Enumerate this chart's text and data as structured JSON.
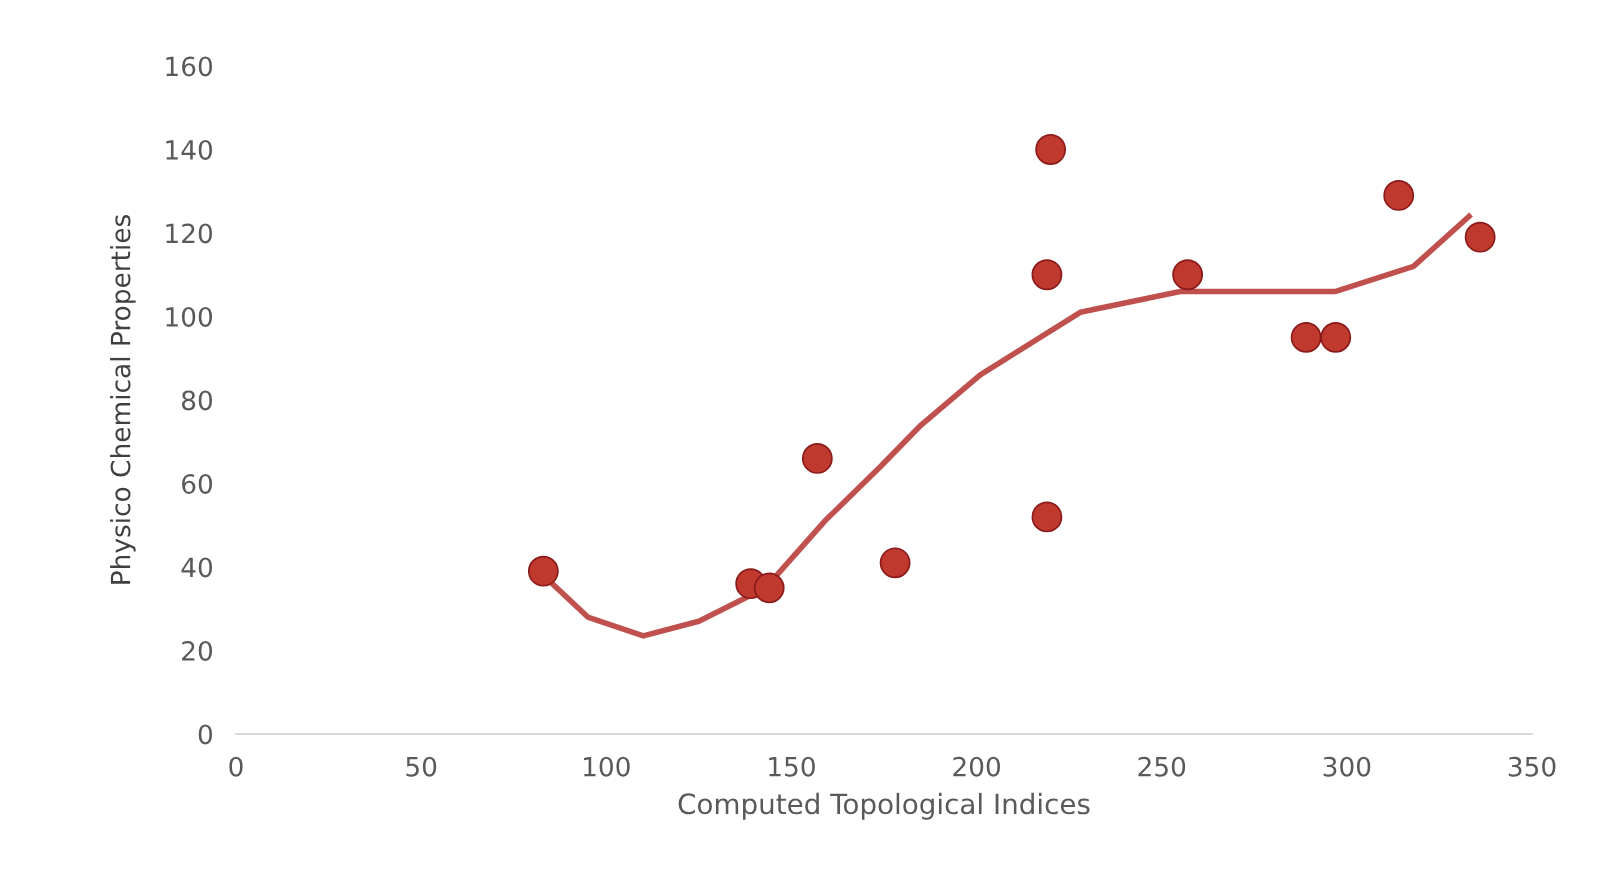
{
  "chart_data": {
    "type": "scatter",
    "xlabel": "Computed Topological Indices",
    "ylabel": "Physico Chemical Properties",
    "xlim": [
      0,
      350
    ],
    "xticks": [
      0,
      50,
      100,
      150,
      200,
      250,
      300,
      350
    ],
    "ylim": [
      0,
      160
    ],
    "yticks": [
      0,
      20,
      40,
      60,
      80,
      100,
      120,
      140,
      160
    ],
    "grid": false,
    "legend": false,
    "marker": "circle",
    "series": [
      {
        "color": "#c0392f",
        "x": [
          83,
          139,
          144,
          157,
          178,
          219,
          219,
          220,
          257,
          289,
          297,
          314,
          336
        ],
        "values": [
          39,
          36,
          35,
          66,
          41,
          52,
          110,
          140,
          110,
          95,
          95,
          129,
          119
        ]
      },
      {
        "type": "line",
        "color": "#c0504d",
        "marker": "none",
        "line_style": "solid",
        "x": [
          83,
          95,
          110,
          125,
          143,
          159,
          174,
          185,
          201,
          228,
          255,
          280,
          297,
          318,
          333
        ],
        "values": [
          38,
          28,
          23.5,
          27,
          35,
          51,
          64,
          74,
          86,
          101,
          106,
          106,
          106,
          112,
          124
        ]
      }
    ]
  }
}
